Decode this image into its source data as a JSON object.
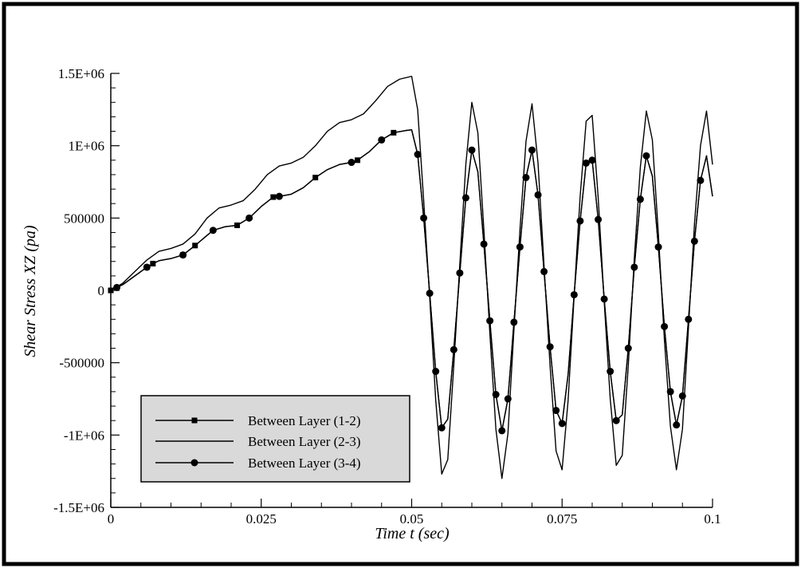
{
  "chart_data": {
    "type": "line",
    "xlabel": "Time t (sec)",
    "ylabel": "Shear Stress XZ (pa)",
    "xlim": [
      0,
      0.1
    ],
    "ylim": [
      -1500000,
      1500000
    ],
    "x_ticks": [
      0,
      0.025,
      0.05,
      0.075,
      0.1
    ],
    "x_tick_labels": [
      "0",
      "0.025",
      "0.05",
      "0.075",
      "0.1"
    ],
    "y_ticks": [
      -1500000,
      -1000000,
      -500000,
      0,
      500000,
      1000000,
      1500000
    ],
    "y_tick_labels": [
      "-1.5E+06",
      "-1E+06",
      "-500000",
      "0",
      "500000",
      "1E+06",
      "1.5E+06"
    ],
    "grid": false,
    "legend_position": "bottom-left",
    "series": [
      {
        "name": "Between Layer (1-2)",
        "marker": "square",
        "points": [
          [
            0,
            0
          ],
          [
            0.002,
            40000
          ],
          [
            0.004,
            100000
          ],
          [
            0.006,
            160000
          ],
          [
            0.007,
            185000
          ],
          [
            0.008,
            205000
          ],
          [
            0.01,
            220000
          ],
          [
            0.012,
            245000
          ],
          [
            0.014,
            310000
          ],
          [
            0.016,
            380000
          ],
          [
            0.017,
            415000
          ],
          [
            0.019,
            440000
          ],
          [
            0.021,
            450000
          ],
          [
            0.023,
            500000
          ],
          [
            0.025,
            580000
          ],
          [
            0.027,
            645000
          ],
          [
            0.028,
            650000
          ],
          [
            0.03,
            665000
          ],
          [
            0.032,
            710000
          ],
          [
            0.034,
            780000
          ],
          [
            0.036,
            835000
          ],
          [
            0.038,
            870000
          ],
          [
            0.04,
            885000
          ],
          [
            0.041,
            900000
          ],
          [
            0.043,
            960000
          ],
          [
            0.045,
            1040000
          ],
          [
            0.047,
            1090000
          ],
          [
            0.049,
            1105000
          ],
          [
            0.05,
            1110000
          ],
          [
            0.051,
            940000
          ],
          [
            0.052,
            500000
          ],
          [
            0.053,
            -20000
          ],
          [
            0.054,
            -560000
          ],
          [
            0.055,
            -950000
          ],
          [
            0.056,
            -890000
          ],
          [
            0.057,
            -410000
          ],
          [
            0.058,
            120000
          ],
          [
            0.059,
            640000
          ],
          [
            0.06,
            970000
          ],
          [
            0.061,
            820000
          ],
          [
            0.062,
            320000
          ],
          [
            0.063,
            -210000
          ],
          [
            0.064,
            -720000
          ],
          [
            0.065,
            -970000
          ],
          [
            0.066,
            -750000
          ],
          [
            0.067,
            -220000
          ],
          [
            0.068,
            300000
          ],
          [
            0.069,
            780000
          ],
          [
            0.07,
            970000
          ],
          [
            0.071,
            660000
          ],
          [
            0.072,
            130000
          ],
          [
            0.073,
            -390000
          ],
          [
            0.074,
            -830000
          ],
          [
            0.075,
            -920000
          ],
          [
            0.076,
            -580000
          ],
          [
            0.077,
            -30000
          ],
          [
            0.078,
            480000
          ],
          [
            0.079,
            880000
          ],
          [
            0.08,
            900000
          ],
          [
            0.081,
            490000
          ],
          [
            0.082,
            -60000
          ],
          [
            0.083,
            -560000
          ],
          [
            0.084,
            -900000
          ],
          [
            0.085,
            -860000
          ],
          [
            0.086,
            -400000
          ],
          [
            0.087,
            160000
          ],
          [
            0.088,
            630000
          ],
          [
            0.089,
            930000
          ],
          [
            0.09,
            790000
          ],
          [
            0.091,
            300000
          ],
          [
            0.092,
            -250000
          ],
          [
            0.093,
            -700000
          ],
          [
            0.094,
            -930000
          ],
          [
            0.095,
            -730000
          ],
          [
            0.096,
            -200000
          ],
          [
            0.097,
            340000
          ],
          [
            0.098,
            760000
          ],
          [
            0.099,
            930000
          ],
          [
            0.1,
            650000
          ]
        ],
        "marker_x": [
          0,
          0.006,
          0.007,
          0.012,
          0.014,
          0.021,
          0.027,
          0.034,
          0.041,
          0.047
        ]
      },
      {
        "name": "Between Layer (2-3)",
        "marker": "none",
        "points": [
          [
            0,
            0
          ],
          [
            0.002,
            50000
          ],
          [
            0.004,
            130000
          ],
          [
            0.006,
            210000
          ],
          [
            0.008,
            270000
          ],
          [
            0.01,
            290000
          ],
          [
            0.012,
            320000
          ],
          [
            0.014,
            390000
          ],
          [
            0.016,
            500000
          ],
          [
            0.018,
            570000
          ],
          [
            0.02,
            590000
          ],
          [
            0.022,
            620000
          ],
          [
            0.024,
            700000
          ],
          [
            0.026,
            800000
          ],
          [
            0.028,
            860000
          ],
          [
            0.03,
            880000
          ],
          [
            0.032,
            920000
          ],
          [
            0.034,
            1000000
          ],
          [
            0.036,
            1100000
          ],
          [
            0.038,
            1160000
          ],
          [
            0.04,
            1180000
          ],
          [
            0.042,
            1220000
          ],
          [
            0.044,
            1310000
          ],
          [
            0.046,
            1410000
          ],
          [
            0.048,
            1460000
          ],
          [
            0.05,
            1480000
          ],
          [
            0.051,
            1250000
          ],
          [
            0.052,
            620000
          ],
          [
            0.053,
            -50000
          ],
          [
            0.054,
            -760000
          ],
          [
            0.055,
            -1270000
          ],
          [
            0.056,
            -1170000
          ],
          [
            0.057,
            -520000
          ],
          [
            0.058,
            180000
          ],
          [
            0.059,
            870000
          ],
          [
            0.06,
            1300000
          ],
          [
            0.061,
            1090000
          ],
          [
            0.062,
            420000
          ],
          [
            0.063,
            -300000
          ],
          [
            0.064,
            -960000
          ],
          [
            0.065,
            -1300000
          ],
          [
            0.066,
            -990000
          ],
          [
            0.067,
            -270000
          ],
          [
            0.068,
            420000
          ],
          [
            0.069,
            1030000
          ],
          [
            0.07,
            1290000
          ],
          [
            0.071,
            880000
          ],
          [
            0.072,
            170000
          ],
          [
            0.073,
            -520000
          ],
          [
            0.074,
            -1110000
          ],
          [
            0.075,
            -1240000
          ],
          [
            0.076,
            -760000
          ],
          [
            0.077,
            -40000
          ],
          [
            0.078,
            650000
          ],
          [
            0.079,
            1170000
          ],
          [
            0.08,
            1210000
          ],
          [
            0.081,
            640000
          ],
          [
            0.082,
            -80000
          ],
          [
            0.083,
            -750000
          ],
          [
            0.084,
            -1210000
          ],
          [
            0.085,
            -1140000
          ],
          [
            0.086,
            -520000
          ],
          [
            0.087,
            220000
          ],
          [
            0.088,
            850000
          ],
          [
            0.089,
            1240000
          ],
          [
            0.09,
            1040000
          ],
          [
            0.091,
            390000
          ],
          [
            0.092,
            -340000
          ],
          [
            0.093,
            -940000
          ],
          [
            0.094,
            -1240000
          ],
          [
            0.095,
            -960000
          ],
          [
            0.096,
            -260000
          ],
          [
            0.097,
            460000
          ],
          [
            0.098,
            1000000
          ],
          [
            0.099,
            1240000
          ],
          [
            0.1,
            870000
          ]
        ]
      },
      {
        "name": "Between Layer (3-4)",
        "marker": "circle",
        "points": [
          [
            0,
            0
          ],
          [
            0.002,
            40000
          ],
          [
            0.004,
            100000
          ],
          [
            0.006,
            160000
          ],
          [
            0.007,
            185000
          ],
          [
            0.008,
            205000
          ],
          [
            0.01,
            220000
          ],
          [
            0.012,
            245000
          ],
          [
            0.014,
            310000
          ],
          [
            0.016,
            380000
          ],
          [
            0.017,
            415000
          ],
          [
            0.019,
            440000
          ],
          [
            0.021,
            450000
          ],
          [
            0.023,
            500000
          ],
          [
            0.025,
            580000
          ],
          [
            0.027,
            645000
          ],
          [
            0.028,
            650000
          ],
          [
            0.03,
            665000
          ],
          [
            0.032,
            710000
          ],
          [
            0.034,
            780000
          ],
          [
            0.036,
            835000
          ],
          [
            0.038,
            870000
          ],
          [
            0.04,
            885000
          ],
          [
            0.041,
            900000
          ],
          [
            0.043,
            960000
          ],
          [
            0.045,
            1040000
          ],
          [
            0.047,
            1090000
          ],
          [
            0.049,
            1105000
          ],
          [
            0.05,
            1110000
          ],
          [
            0.051,
            940000
          ],
          [
            0.052,
            500000
          ],
          [
            0.053,
            -20000
          ],
          [
            0.054,
            -560000
          ],
          [
            0.055,
            -950000
          ],
          [
            0.056,
            -890000
          ],
          [
            0.057,
            -410000
          ],
          [
            0.058,
            120000
          ],
          [
            0.059,
            640000
          ],
          [
            0.06,
            970000
          ],
          [
            0.061,
            820000
          ],
          [
            0.062,
            320000
          ],
          [
            0.063,
            -210000
          ],
          [
            0.064,
            -720000
          ],
          [
            0.065,
            -970000
          ],
          [
            0.066,
            -750000
          ],
          [
            0.067,
            -220000
          ],
          [
            0.068,
            300000
          ],
          [
            0.069,
            780000
          ],
          [
            0.07,
            970000
          ],
          [
            0.071,
            660000
          ],
          [
            0.072,
            130000
          ],
          [
            0.073,
            -390000
          ],
          [
            0.074,
            -830000
          ],
          [
            0.075,
            -920000
          ],
          [
            0.076,
            -580000
          ],
          [
            0.077,
            -30000
          ],
          [
            0.078,
            480000
          ],
          [
            0.079,
            880000
          ],
          [
            0.08,
            900000
          ],
          [
            0.081,
            490000
          ],
          [
            0.082,
            -60000
          ],
          [
            0.083,
            -560000
          ],
          [
            0.084,
            -900000
          ],
          [
            0.085,
            -860000
          ],
          [
            0.086,
            -400000
          ],
          [
            0.087,
            160000
          ],
          [
            0.088,
            630000
          ],
          [
            0.089,
            930000
          ],
          [
            0.09,
            790000
          ],
          [
            0.091,
            300000
          ],
          [
            0.092,
            -250000
          ],
          [
            0.093,
            -700000
          ],
          [
            0.094,
            -930000
          ],
          [
            0.095,
            -730000
          ],
          [
            0.096,
            -200000
          ],
          [
            0.097,
            340000
          ],
          [
            0.098,
            760000
          ],
          [
            0.099,
            930000
          ],
          [
            0.1,
            650000
          ]
        ],
        "marker_x": [
          0.001,
          0.006,
          0.012,
          0.017,
          0.023,
          0.028,
          0.04,
          0.045,
          0.051,
          0.052,
          0.053,
          0.054,
          0.055,
          0.057,
          0.058,
          0.059,
          0.06,
          0.062,
          0.063,
          0.064,
          0.065,
          0.066,
          0.067,
          0.068,
          0.069,
          0.07,
          0.071,
          0.072,
          0.073,
          0.074,
          0.075,
          0.077,
          0.078,
          0.079,
          0.08,
          0.081,
          0.082,
          0.083,
          0.084,
          0.086,
          0.087,
          0.088,
          0.089,
          0.091,
          0.092,
          0.093,
          0.094,
          0.095,
          0.096,
          0.097,
          0.098
        ]
      }
    ]
  },
  "colors": {
    "frame": "#000000",
    "line": "#000000",
    "legend_bg": "#d9d9d9"
  }
}
